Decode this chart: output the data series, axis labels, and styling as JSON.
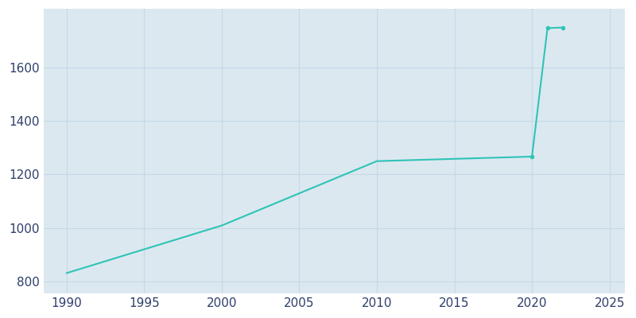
{
  "years": [
    1990,
    2000,
    2010,
    2020,
    2021,
    2022
  ],
  "population": [
    831,
    1009,
    1250,
    1267,
    1748,
    1750
  ],
  "line_color": "#2ec4b6",
  "marker": "o",
  "marker_size": 4,
  "bg_color": "#dce8f0",
  "fig_bg_color": "#ffffff",
  "grid_color": "#c5d8e8",
  "xlim": [
    1988.5,
    2026
  ],
  "ylim": [
    755,
    1820
  ],
  "xticks": [
    1990,
    1995,
    2000,
    2005,
    2010,
    2015,
    2020,
    2025
  ],
  "yticks": [
    800,
    1000,
    1200,
    1400,
    1600
  ],
  "tick_color": "#2d3e6b",
  "tick_fontsize": 11,
  "figsize": [
    8.0,
    4.0
  ],
  "dpi": 100
}
